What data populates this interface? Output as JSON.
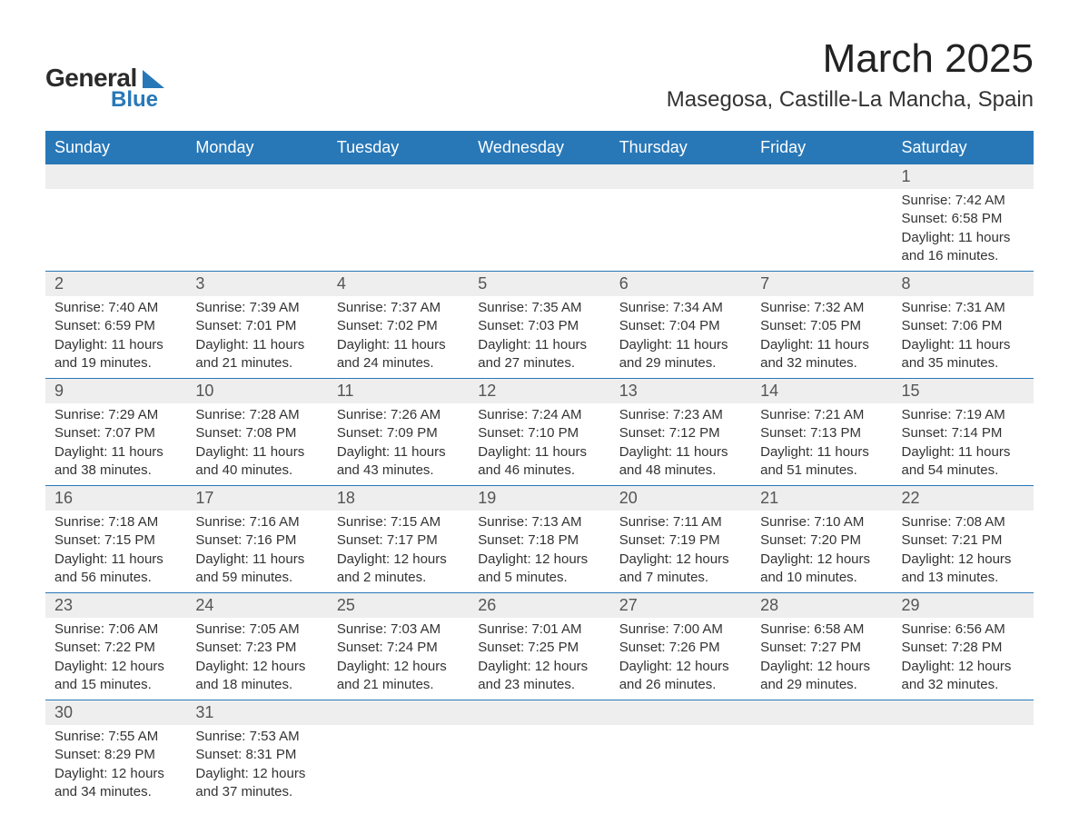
{
  "logo": {
    "general": "General",
    "blue": "Blue"
  },
  "title": "March 2025",
  "location": "Masegosa, Castille-La Mancha, Spain",
  "colors": {
    "header_bg": "#2878b8",
    "header_text": "#ffffff",
    "daynum_bg": "#eeeeee",
    "text": "#333333",
    "row_border": "#2878b8",
    "logo_accent": "#2878b8",
    "background": "#ffffff"
  },
  "weekdays": [
    "Sunday",
    "Monday",
    "Tuesday",
    "Wednesday",
    "Thursday",
    "Friday",
    "Saturday"
  ],
  "labels": {
    "sunrise": "Sunrise:",
    "sunset": "Sunset:",
    "daylight": "Daylight:"
  },
  "weeks": [
    [
      null,
      null,
      null,
      null,
      null,
      null,
      {
        "day": "1",
        "sunrise": "7:42 AM",
        "sunset": "6:58 PM",
        "daylight": "11 hours and 16 minutes."
      }
    ],
    [
      {
        "day": "2",
        "sunrise": "7:40 AM",
        "sunset": "6:59 PM",
        "daylight": "11 hours and 19 minutes."
      },
      {
        "day": "3",
        "sunrise": "7:39 AM",
        "sunset": "7:01 PM",
        "daylight": "11 hours and 21 minutes."
      },
      {
        "day": "4",
        "sunrise": "7:37 AM",
        "sunset": "7:02 PM",
        "daylight": "11 hours and 24 minutes."
      },
      {
        "day": "5",
        "sunrise": "7:35 AM",
        "sunset": "7:03 PM",
        "daylight": "11 hours and 27 minutes."
      },
      {
        "day": "6",
        "sunrise": "7:34 AM",
        "sunset": "7:04 PM",
        "daylight": "11 hours and 29 minutes."
      },
      {
        "day": "7",
        "sunrise": "7:32 AM",
        "sunset": "7:05 PM",
        "daylight": "11 hours and 32 minutes."
      },
      {
        "day": "8",
        "sunrise": "7:31 AM",
        "sunset": "7:06 PM",
        "daylight": "11 hours and 35 minutes."
      }
    ],
    [
      {
        "day": "9",
        "sunrise": "7:29 AM",
        "sunset": "7:07 PM",
        "daylight": "11 hours and 38 minutes."
      },
      {
        "day": "10",
        "sunrise": "7:28 AM",
        "sunset": "7:08 PM",
        "daylight": "11 hours and 40 minutes."
      },
      {
        "day": "11",
        "sunrise": "7:26 AM",
        "sunset": "7:09 PM",
        "daylight": "11 hours and 43 minutes."
      },
      {
        "day": "12",
        "sunrise": "7:24 AM",
        "sunset": "7:10 PM",
        "daylight": "11 hours and 46 minutes."
      },
      {
        "day": "13",
        "sunrise": "7:23 AM",
        "sunset": "7:12 PM",
        "daylight": "11 hours and 48 minutes."
      },
      {
        "day": "14",
        "sunrise": "7:21 AM",
        "sunset": "7:13 PM",
        "daylight": "11 hours and 51 minutes."
      },
      {
        "day": "15",
        "sunrise": "7:19 AM",
        "sunset": "7:14 PM",
        "daylight": "11 hours and 54 minutes."
      }
    ],
    [
      {
        "day": "16",
        "sunrise": "7:18 AM",
        "sunset": "7:15 PM",
        "daylight": "11 hours and 56 minutes."
      },
      {
        "day": "17",
        "sunrise": "7:16 AM",
        "sunset": "7:16 PM",
        "daylight": "11 hours and 59 minutes."
      },
      {
        "day": "18",
        "sunrise": "7:15 AM",
        "sunset": "7:17 PM",
        "daylight": "12 hours and 2 minutes."
      },
      {
        "day": "19",
        "sunrise": "7:13 AM",
        "sunset": "7:18 PM",
        "daylight": "12 hours and 5 minutes."
      },
      {
        "day": "20",
        "sunrise": "7:11 AM",
        "sunset": "7:19 PM",
        "daylight": "12 hours and 7 minutes."
      },
      {
        "day": "21",
        "sunrise": "7:10 AM",
        "sunset": "7:20 PM",
        "daylight": "12 hours and 10 minutes."
      },
      {
        "day": "22",
        "sunrise": "7:08 AM",
        "sunset": "7:21 PM",
        "daylight": "12 hours and 13 minutes."
      }
    ],
    [
      {
        "day": "23",
        "sunrise": "7:06 AM",
        "sunset": "7:22 PM",
        "daylight": "12 hours and 15 minutes."
      },
      {
        "day": "24",
        "sunrise": "7:05 AM",
        "sunset": "7:23 PM",
        "daylight": "12 hours and 18 minutes."
      },
      {
        "day": "25",
        "sunrise": "7:03 AM",
        "sunset": "7:24 PM",
        "daylight": "12 hours and 21 minutes."
      },
      {
        "day": "26",
        "sunrise": "7:01 AM",
        "sunset": "7:25 PM",
        "daylight": "12 hours and 23 minutes."
      },
      {
        "day": "27",
        "sunrise": "7:00 AM",
        "sunset": "7:26 PM",
        "daylight": "12 hours and 26 minutes."
      },
      {
        "day": "28",
        "sunrise": "6:58 AM",
        "sunset": "7:27 PM",
        "daylight": "12 hours and 29 minutes."
      },
      {
        "day": "29",
        "sunrise": "6:56 AM",
        "sunset": "7:28 PM",
        "daylight": "12 hours and 32 minutes."
      }
    ],
    [
      {
        "day": "30",
        "sunrise": "7:55 AM",
        "sunset": "8:29 PM",
        "daylight": "12 hours and 34 minutes."
      },
      {
        "day": "31",
        "sunrise": "7:53 AM",
        "sunset": "8:31 PM",
        "daylight": "12 hours and 37 minutes."
      },
      null,
      null,
      null,
      null,
      null
    ]
  ]
}
